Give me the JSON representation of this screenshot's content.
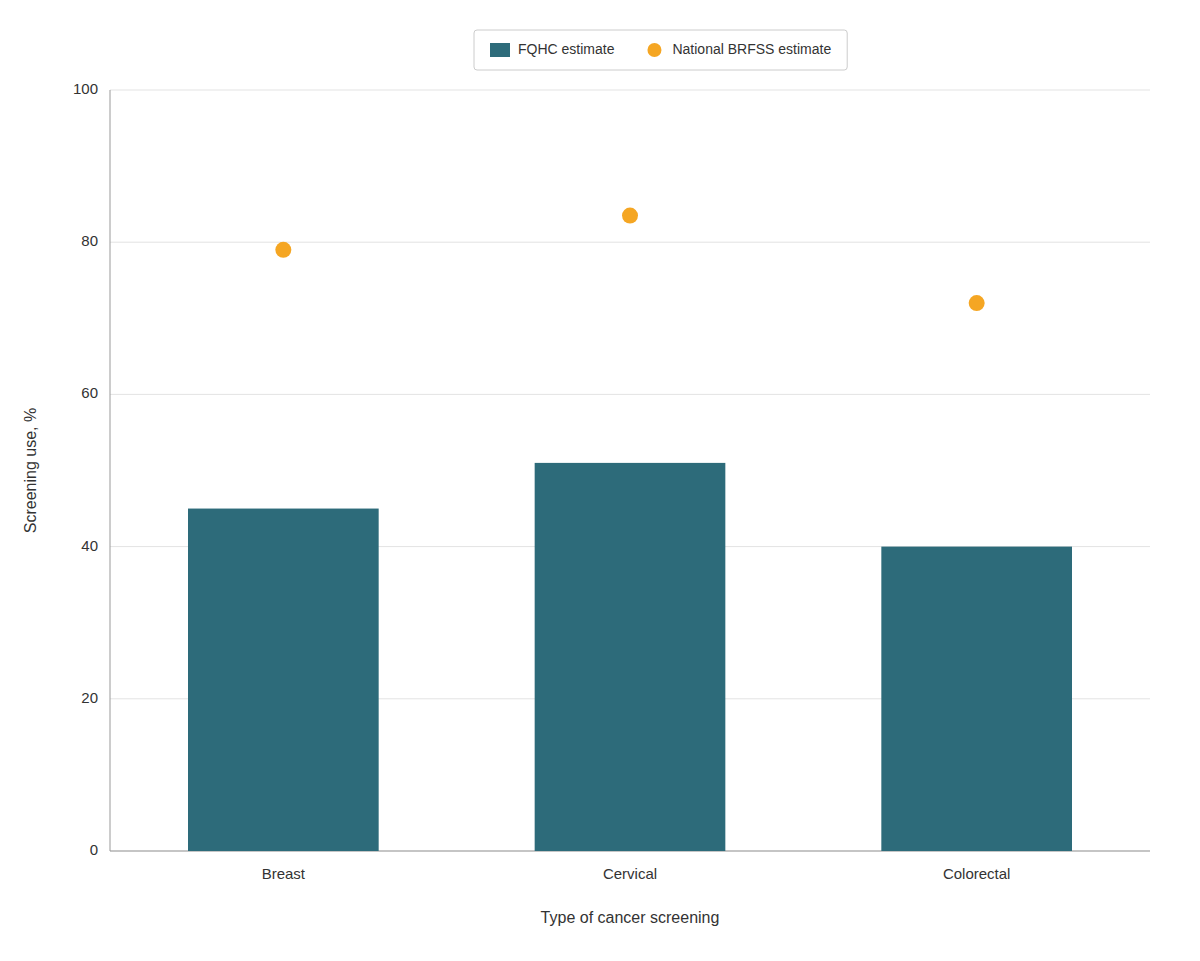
{
  "chart_data": {
    "type": "bar",
    "categories": [
      "Breast",
      "Cervical",
      "Colorectal"
    ],
    "series": [
      {
        "name": "FQHC estimate",
        "type": "bar",
        "color": "#2d6b7a",
        "values": [
          45,
          51,
          40
        ]
      },
      {
        "name": "National BRFSS estimate",
        "type": "scatter",
        "marker": "circle",
        "color": "#f5a623",
        "values": [
          79,
          83.5,
          72
        ]
      }
    ],
    "xlabel": "Type of cancer screening",
    "ylabel": "Screening use, %",
    "ylim": [
      0,
      100
    ],
    "yticks": [
      0,
      20,
      40,
      60,
      80,
      100
    ],
    "grid": true,
    "legend": "top"
  }
}
